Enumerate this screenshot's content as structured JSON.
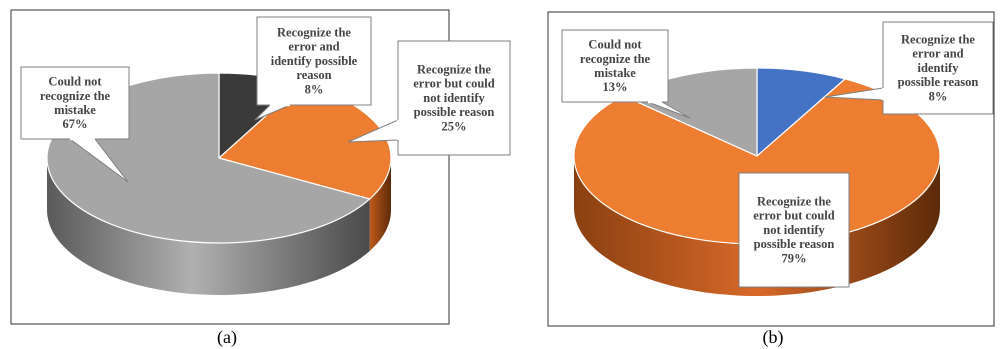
{
  "chart_data": [
    {
      "type": "pie",
      "caption": "(a)",
      "slices": [
        {
          "label": [
            "Recognize the",
            "error and",
            "identify possible",
            "reason"
          ],
          "value": 8,
          "value_label": "8%",
          "color": "#3a3a3a"
        },
        {
          "label": [
            "Recognize the",
            "error but could",
            "not identify",
            "possible reason"
          ],
          "value": 25,
          "value_label": "25%",
          "color": "#ed7d31"
        },
        {
          "label": [
            "Could not",
            "recognize the",
            "mistake"
          ],
          "value": 67,
          "value_label": "67%",
          "color": "#a6a6a6"
        }
      ]
    },
    {
      "type": "pie",
      "caption": "(b)",
      "slices": [
        {
          "label": [
            "Recognize the",
            "error and",
            "identify",
            "possible reason"
          ],
          "value": 8,
          "value_label": "8%",
          "color": "#4472c4"
        },
        {
          "label": [
            "Recognize the",
            "error but could",
            "not identify",
            "possible reason"
          ],
          "value": 79,
          "value_label": "79%",
          "color": "#ed7d31"
        },
        {
          "label": [
            "Could not",
            "recognize the",
            "mistake"
          ],
          "value": 13,
          "value_label": "13%",
          "color": "#a6a6a6"
        }
      ]
    }
  ]
}
